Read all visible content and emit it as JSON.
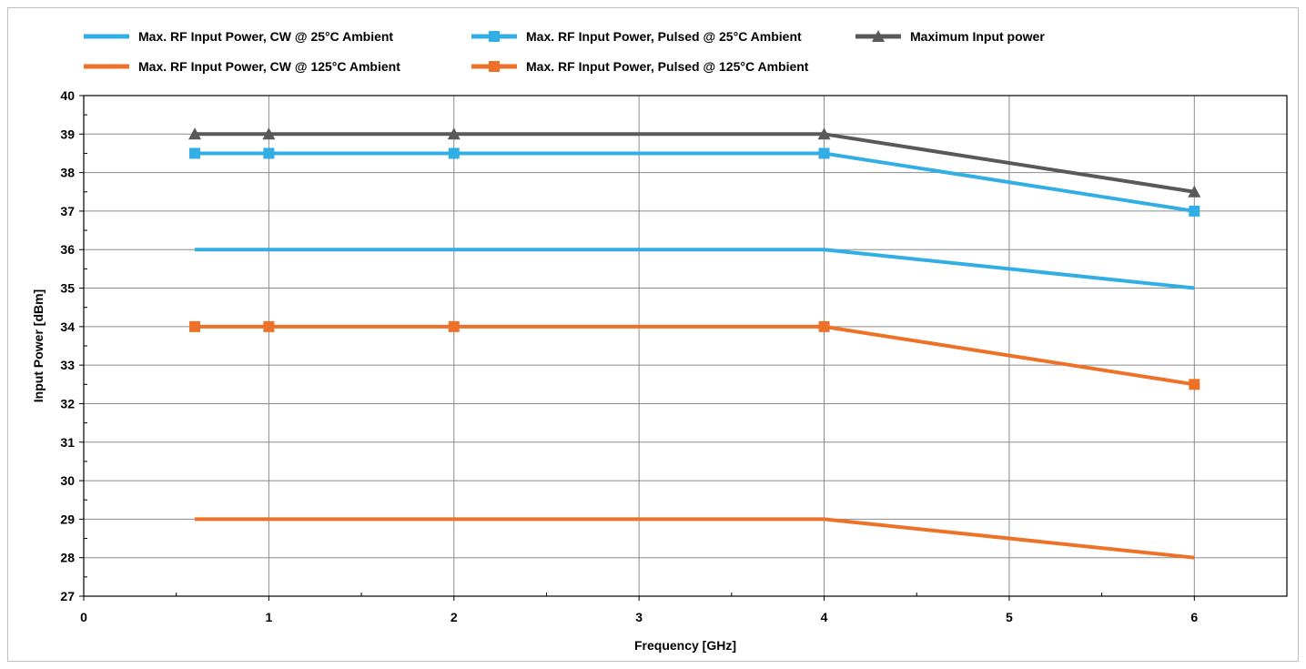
{
  "chart_data": {
    "type": "line",
    "xlabel": "Frequency [GHz]",
    "ylabel": "Input Power [dBm]",
    "xlim": [
      0,
      6.5
    ],
    "ylim": [
      27,
      40
    ],
    "x_ticks": [
      0,
      1,
      2,
      3,
      4,
      5,
      6
    ],
    "y_ticks": [
      27,
      28,
      29,
      30,
      31,
      32,
      33,
      34,
      35,
      36,
      37,
      38,
      39,
      40
    ],
    "grid": true,
    "legend_position": "top",
    "series": [
      {
        "name": "Max. RF Input Power, CW @ 25°C Ambient",
        "color": "#33aee4",
        "marker": "none",
        "x": [
          0.6,
          4,
          6
        ],
        "y": [
          36,
          36,
          35
        ]
      },
      {
        "name": "Max. RF Input Power, Pulsed @ 25°C Ambient",
        "color": "#33aee4",
        "marker": "square",
        "x": [
          0.6,
          1,
          2,
          4,
          6
        ],
        "y": [
          38.5,
          38.5,
          38.5,
          38.5,
          37
        ]
      },
      {
        "name": "Maximum Input power",
        "color": "#595959",
        "marker": "triangle",
        "x": [
          0.6,
          1,
          2,
          4,
          6
        ],
        "y": [
          39,
          39,
          39,
          39,
          37.5
        ]
      },
      {
        "name": "Max. RF Input Power, CW @ 125°C Ambient",
        "color": "#ee7128",
        "marker": "none",
        "x": [
          0.6,
          4,
          6
        ],
        "y": [
          29,
          29,
          28
        ]
      },
      {
        "name": "Max. RF Input Power, Pulsed @ 125°C Ambient",
        "color": "#ee7128",
        "marker": "square",
        "x": [
          0.6,
          1,
          2,
          4,
          6
        ],
        "y": [
          34,
          34,
          34,
          34,
          32.5
        ]
      }
    ]
  }
}
